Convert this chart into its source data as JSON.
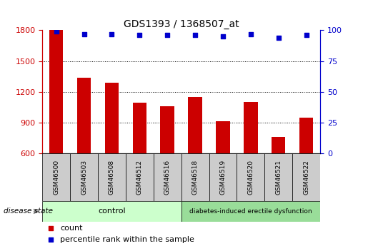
{
  "title": "GDS1393 / 1368507_at",
  "samples": [
    "GSM46500",
    "GSM46503",
    "GSM46508",
    "GSM46512",
    "GSM46516",
    "GSM46518",
    "GSM46519",
    "GSM46520",
    "GSM46521",
    "GSM46522"
  ],
  "counts": [
    1800,
    1340,
    1290,
    1090,
    1060,
    1150,
    910,
    1100,
    760,
    950
  ],
  "percentile_ranks": [
    99,
    97,
    97,
    96,
    96,
    96,
    95,
    97,
    94,
    96
  ],
  "ylim_left": [
    600,
    1800
  ],
  "ylim_right": [
    0,
    100
  ],
  "yticks_left": [
    600,
    900,
    1200,
    1500,
    1800
  ],
  "yticks_right": [
    0,
    25,
    50,
    75,
    100
  ],
  "bar_color": "#cc0000",
  "dot_color": "#0000cc",
  "group_box_color": "#cccccc",
  "ctrl_color": "#ccffcc",
  "diab_color": "#99dd99",
  "legend_count_color": "#cc0000",
  "legend_dot_color": "#0000cc",
  "left_tick_color": "#cc0000",
  "right_tick_color": "#0000cc",
  "disease_state_label": "disease state",
  "ctrl_label": "control",
  "diab_label": "diabetes-induced erectile dysfunction",
  "legend_count_label": "count",
  "legend_percentile_label": "percentile rank within the sample",
  "title_fontsize": 10,
  "tick_fontsize": 8,
  "sample_fontsize": 6.5,
  "group_fontsize": 8,
  "legend_fontsize": 8
}
